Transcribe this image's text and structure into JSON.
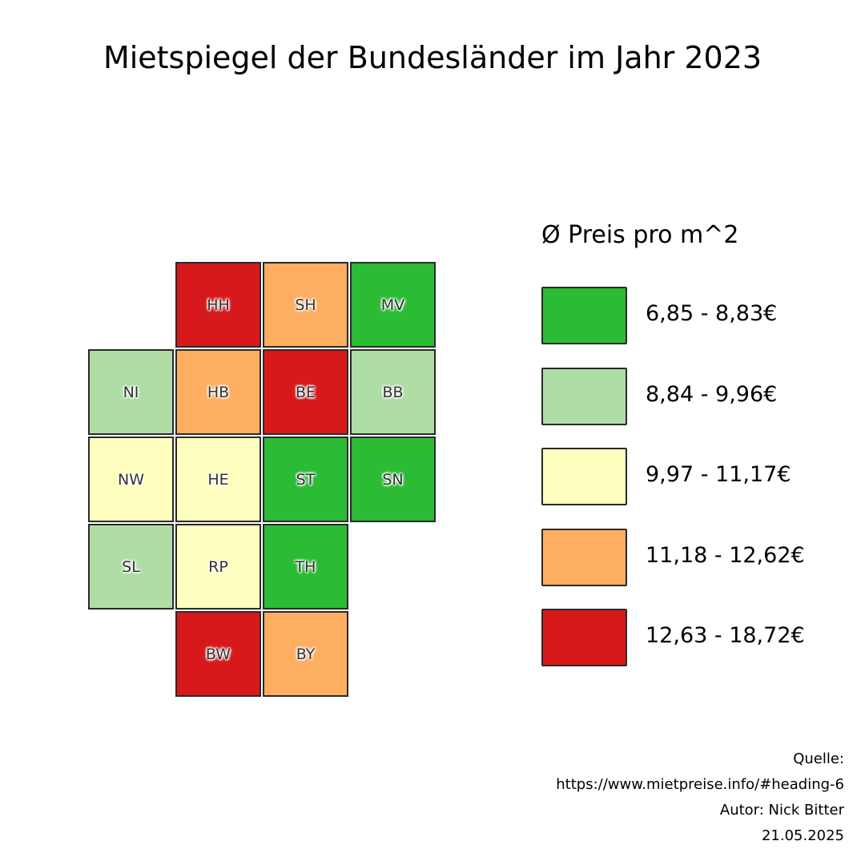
{
  "chart_data": {
    "type": "heatmap",
    "title": "Mietspiegel der Bundesländer im Jahr 2023",
    "legend_title": "Ø Preis pro m^2",
    "legend_position": "right",
    "classes": [
      {
        "label": "6,85 - 8,83€",
        "color": "#2bbb35"
      },
      {
        "label": "8,84 - 9,96€",
        "color": "#aedda5"
      },
      {
        "label": "9,97 - 11,17€",
        "color": "#feffbf"
      },
      {
        "label": "11,18 - 12,62€",
        "color": "#fdae60"
      },
      {
        "label": "12,63 - 18,72€",
        "color": "#d7191b"
      }
    ],
    "tiles": [
      {
        "state": "HH",
        "row": 0,
        "col": 1,
        "class": 4
      },
      {
        "state": "SH",
        "row": 0,
        "col": 2,
        "class": 3
      },
      {
        "state": "MV",
        "row": 0,
        "col": 3,
        "class": 0
      },
      {
        "state": "NI",
        "row": 1,
        "col": 0,
        "class": 1
      },
      {
        "state": "HB",
        "row": 1,
        "col": 1,
        "class": 3
      },
      {
        "state": "BE",
        "row": 1,
        "col": 2,
        "class": 4
      },
      {
        "state": "BB",
        "row": 1,
        "col": 3,
        "class": 1
      },
      {
        "state": "NW",
        "row": 2,
        "col": 0,
        "class": 2
      },
      {
        "state": "HE",
        "row": 2,
        "col": 1,
        "class": 2
      },
      {
        "state": "ST",
        "row": 2,
        "col": 2,
        "class": 0
      },
      {
        "state": "SN",
        "row": 2,
        "col": 3,
        "class": 0
      },
      {
        "state": "SL",
        "row": 3,
        "col": 0,
        "class": 1
      },
      {
        "state": "RP",
        "row": 3,
        "col": 1,
        "class": 2
      },
      {
        "state": "TH",
        "row": 3,
        "col": 2,
        "class": 0
      },
      {
        "state": "BW",
        "row": 4,
        "col": 1,
        "class": 4
      },
      {
        "state": "BY",
        "row": 4,
        "col": 2,
        "class": 3
      }
    ]
  },
  "footer": {
    "source_label": "Quelle:",
    "source_url": "https://www.mietpreise.info/#heading-6",
    "author": "Autor: Nick Bitter",
    "date": "21.05.2025"
  }
}
